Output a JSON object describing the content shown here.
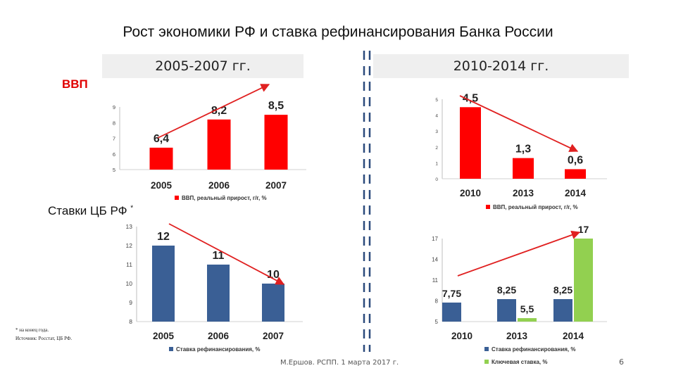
{
  "title": "Рост экономики РФ и ставка рефинансирования Банка России",
  "period_left": "2005-2007 гг.",
  "period_right": "2010-2014 гг.",
  "label_gdp": "ВВП",
  "label_rates": "Ставки ЦБ РФ",
  "label_rates_mark": "*",
  "footnote_1": "* на конец года.",
  "footnote_2": "Источник: Росстат, ЦБ РФ.",
  "footer_text": "М.Ершов. РСПП. 1 марта 2017 г.",
  "page_number": "6",
  "colors": {
    "red": "#ff0000",
    "blue": "#3a5f95",
    "green": "#92d050",
    "arrow": "#e02020"
  },
  "chart_data": [
    {
      "type": "bar",
      "categories": [
        "2005",
        "2006",
        "2007"
      ],
      "series": [
        {
          "name": "ВВП, реальный прирост, г/г, %",
          "values": [
            6.4,
            8.2,
            8.5
          ],
          "labels": [
            "6,4",
            "8,2",
            "8,5"
          ]
        }
      ],
      "yticks": [
        "5",
        "6",
        "7",
        "8",
        "9"
      ],
      "ylim": [
        5,
        9
      ],
      "trend": "up"
    },
    {
      "type": "bar",
      "categories": [
        "2010",
        "2013",
        "2014"
      ],
      "series": [
        {
          "name": "ВВП, реальный прирост, г/г, %",
          "values": [
            4.5,
            1.3,
            0.6
          ],
          "labels": [
            "4,5",
            "1,3",
            "0,6"
          ]
        }
      ],
      "yticks": [
        "0",
        "1",
        "2",
        "3",
        "4",
        "5"
      ],
      "ylim": [
        0,
        5
      ],
      "trend": "down"
    },
    {
      "type": "bar",
      "categories": [
        "2005",
        "2006",
        "2007"
      ],
      "series": [
        {
          "name": "Ставка рефинансирования, %",
          "values": [
            12,
            11,
            10
          ],
          "labels": [
            "12",
            "11",
            "10"
          ]
        }
      ],
      "yticks": [
        "8",
        "9",
        "10",
        "11",
        "12",
        "13"
      ],
      "ylim": [
        8,
        13
      ],
      "trend": "down"
    },
    {
      "type": "bar",
      "categories": [
        "2010",
        "2013",
        "2014"
      ],
      "series": [
        {
          "name": "Ставка рефинансирования, %",
          "values": [
            7.75,
            8.25,
            8.25
          ],
          "labels": [
            "7,75",
            "8,25",
            "8,25"
          ]
        },
        {
          "name": "Ключевая ставка, %",
          "values": [
            null,
            5.5,
            17
          ],
          "labels": [
            "",
            "5,5",
            "17"
          ]
        }
      ],
      "yticks": [
        "5",
        "8",
        "11",
        "14",
        "17"
      ],
      "ylim": [
        5,
        17
      ],
      "trend": "up"
    }
  ]
}
